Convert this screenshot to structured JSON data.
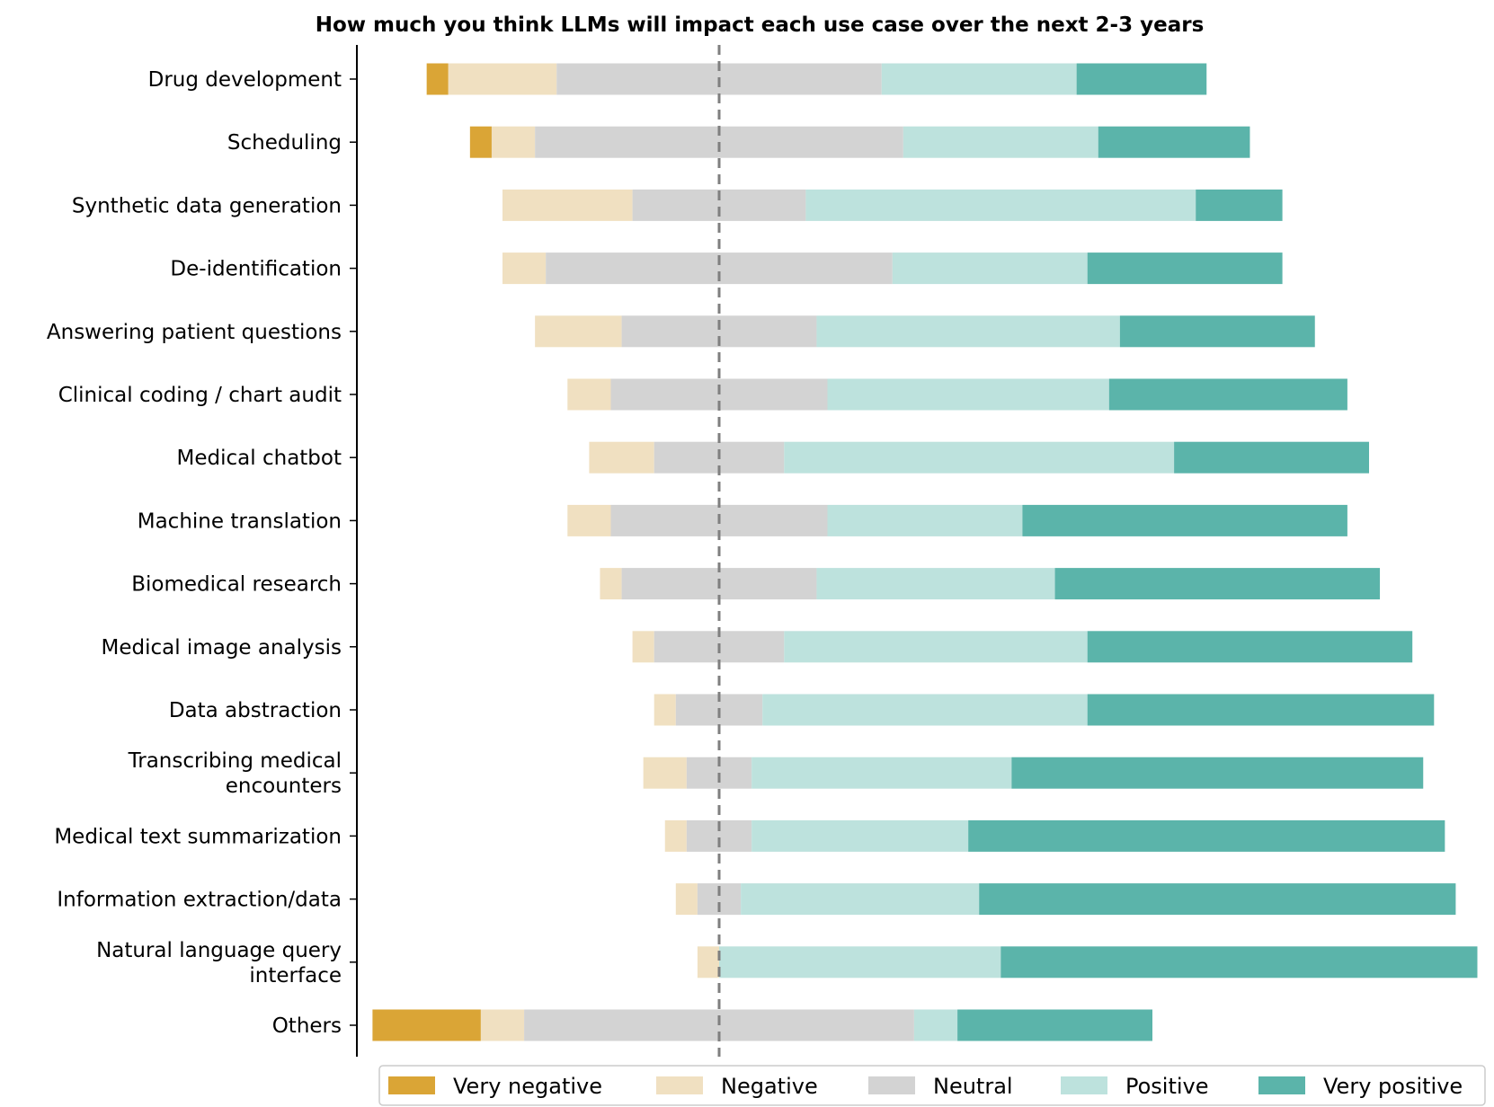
{
  "chart_data": {
    "type": "bar",
    "orientation": "horizontal",
    "stacked": "diverging",
    "title": "How much you think LLMs will impact each use case over the next 2-3 years",
    "xlabel": "",
    "ylabel": "",
    "center_reference": "dashed vertical line at neutral midpoint",
    "categories": [
      [
        "Drug development"
      ],
      [
        "Scheduling"
      ],
      [
        "Synthetic data generation"
      ],
      [
        "De-identification"
      ],
      [
        "Answering patient questions"
      ],
      [
        "Clinical coding / chart audit"
      ],
      [
        "Medical chatbot"
      ],
      [
        "Machine translation"
      ],
      [
        "Biomedical research"
      ],
      [
        "Medical image analysis"
      ],
      [
        "Data abstraction"
      ],
      [
        "Transcribing medical",
        "encounters"
      ],
      [
        "Medical text summarization"
      ],
      [
        "Information extraction/data"
      ],
      [
        "Natural language query",
        "interface"
      ],
      [
        "Others"
      ]
    ],
    "series": [
      {
        "name": "Very negative",
        "color": "#DAA536",
        "values": [
          2,
          2,
          0,
          0,
          0,
          0,
          0,
          0,
          0,
          0,
          0,
          0,
          0,
          0,
          0,
          10
        ]
      },
      {
        "name": "Negative",
        "color": "#F0E0C1",
        "values": [
          10,
          4,
          12,
          4,
          8,
          4,
          6,
          4,
          2,
          2,
          2,
          4,
          2,
          2,
          2,
          4
        ]
      },
      {
        "name": "Neutral",
        "color": "#D3D3D3",
        "values": [
          30,
          34,
          16,
          32,
          18,
          20,
          12,
          20,
          18,
          12,
          8,
          6,
          6,
          4,
          0,
          36
        ]
      },
      {
        "name": "Positive",
        "color": "#BDE2DD",
        "values": [
          18,
          18,
          36,
          18,
          28,
          26,
          36,
          18,
          22,
          28,
          30,
          24,
          20,
          22,
          26,
          4
        ]
      },
      {
        "name": "Very positive",
        "color": "#5BB4AA",
        "values": [
          12,
          14,
          8,
          18,
          18,
          22,
          18,
          30,
          30,
          30,
          32,
          38,
          44,
          44,
          44,
          18
        ]
      }
    ],
    "legend": {
      "position": "bottom",
      "entries": [
        "Very negative",
        "Negative",
        "Neutral",
        "Positive",
        "Very positive"
      ]
    }
  }
}
